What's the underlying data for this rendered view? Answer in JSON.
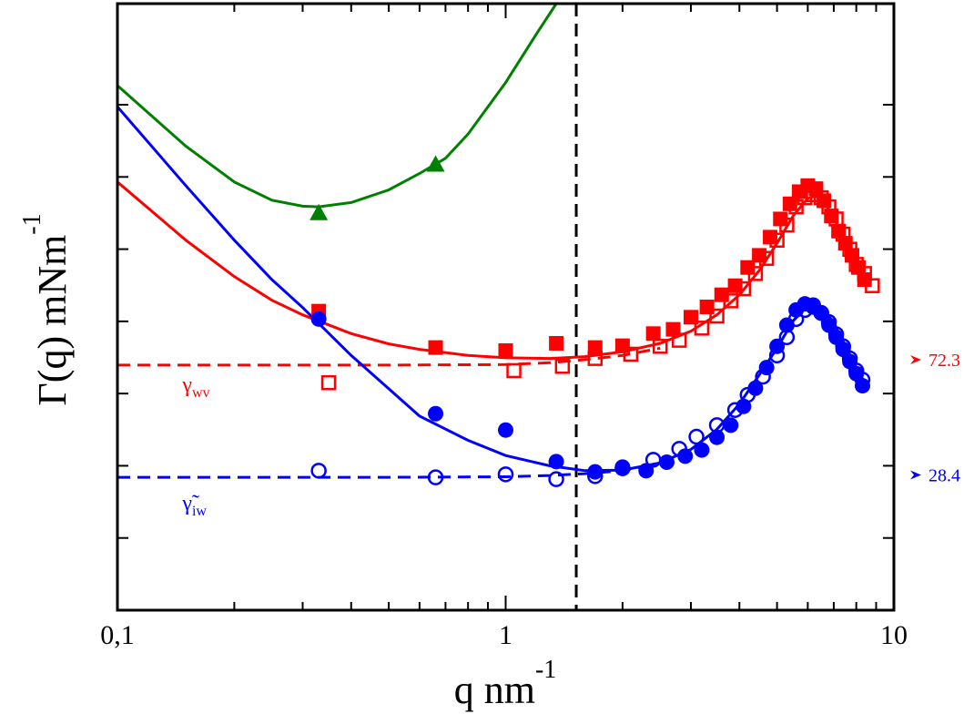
{
  "chart_data": {
    "type": "scatter",
    "title": "",
    "xscale": "log",
    "xlim": [
      0.1,
      10
    ],
    "ylim": [
      0,
      100
    ],
    "ylim_note": "y axis has no numeric tick labels; values are relative (0 = bottom, 100 = top of plot frame)",
    "x_tick_labels": [
      {
        "value": 0.1,
        "label": "0,1"
      },
      {
        "value": 1,
        "label": "1"
      },
      {
        "value": 10,
        "label": "10"
      }
    ],
    "xlabel": {
      "base": "q nm",
      "sup": "-1"
    },
    "ylabel": {
      "base": "Γ(q) mNm",
      "sup": "-1"
    },
    "vertical_reference_line": {
      "x": 1.52,
      "style": "dashed",
      "color": "#000000"
    },
    "series": [
      {
        "name": "green filled triangles",
        "marker": "triangle-filled",
        "color": "#008000",
        "points": [
          [
            0.33,
            65.5
          ],
          [
            0.66,
            73.5
          ]
        ]
      },
      {
        "name": "green fit",
        "kind": "line",
        "style": "solid",
        "color": "#008000",
        "points": [
          [
            0.1,
            86.5
          ],
          [
            0.15,
            76.5
          ],
          [
            0.2,
            70.6
          ],
          [
            0.25,
            67.6
          ],
          [
            0.3,
            66.6
          ],
          [
            0.33,
            66.5
          ],
          [
            0.4,
            67.2
          ],
          [
            0.5,
            69.3
          ],
          [
            0.6,
            72.0
          ],
          [
            0.7,
            74.5
          ],
          [
            0.8,
            78.5
          ],
          [
            1.0,
            87.0
          ],
          [
            1.2,
            95.0
          ],
          [
            1.35,
            100.0
          ]
        ]
      },
      {
        "name": "red filled squares",
        "marker": "square-filled",
        "color": "#ff0000",
        "points": [
          [
            0.33,
            49.3
          ],
          [
            0.66,
            43.3
          ],
          [
            1.0,
            42.8
          ],
          [
            1.35,
            44.0
          ],
          [
            1.7,
            43.3
          ],
          [
            2.0,
            43.6
          ],
          [
            2.4,
            45.6
          ],
          [
            2.7,
            46.3
          ],
          [
            3.0,
            48.3
          ],
          [
            3.3,
            50.0
          ],
          [
            3.6,
            52.0
          ],
          [
            3.9,
            53.5
          ],
          [
            4.2,
            56.5
          ],
          [
            4.5,
            58.5
          ],
          [
            4.8,
            61.5
          ],
          [
            5.1,
            64.5
          ],
          [
            5.4,
            67.0
          ],
          [
            5.7,
            69.0
          ],
          [
            6.0,
            70.0
          ],
          [
            6.3,
            69.5
          ],
          [
            6.6,
            67.5
          ],
          [
            6.9,
            65.0
          ],
          [
            7.2,
            62.5
          ],
          [
            7.5,
            60.5
          ],
          [
            7.8,
            58.5
          ],
          [
            8.1,
            56.5
          ],
          [
            8.4,
            54.5
          ]
        ]
      },
      {
        "name": "red open squares",
        "marker": "square-open",
        "color": "#ff0000",
        "points": [
          [
            0.35,
            37.5
          ],
          [
            1.05,
            39.5
          ],
          [
            1.4,
            40.2
          ],
          [
            1.7,
            41.5
          ],
          [
            2.1,
            42.2
          ],
          [
            2.5,
            43.5
          ],
          [
            2.8,
            44.5
          ],
          [
            3.2,
            46.5
          ],
          [
            3.5,
            48.5
          ],
          [
            3.8,
            51.0
          ],
          [
            4.1,
            53.0
          ],
          [
            4.4,
            55.5
          ],
          [
            4.7,
            58.0
          ],
          [
            5.0,
            61.0
          ],
          [
            5.3,
            63.5
          ],
          [
            5.6,
            66.5
          ],
          [
            5.9,
            68.0
          ],
          [
            6.2,
            68.5
          ],
          [
            6.5,
            68.0
          ],
          [
            6.8,
            66.5
          ],
          [
            7.1,
            64.5
          ],
          [
            7.4,
            62.0
          ],
          [
            7.7,
            59.5
          ],
          [
            8.0,
            57.0
          ],
          [
            8.4,
            55.5
          ],
          [
            8.8,
            53.5
          ]
        ]
      },
      {
        "name": "red fit",
        "kind": "line",
        "style": "solid",
        "color": "#ff0000",
        "points": [
          [
            0.1,
            70.6
          ],
          [
            0.15,
            61.0
          ],
          [
            0.2,
            55.0
          ],
          [
            0.25,
            51.1
          ],
          [
            0.3,
            48.7
          ],
          [
            0.4,
            45.6
          ],
          [
            0.5,
            43.9
          ],
          [
            0.6,
            43.0
          ],
          [
            0.8,
            42.0
          ],
          [
            1.0,
            41.6
          ],
          [
            1.3,
            41.5
          ],
          [
            1.6,
            41.8
          ],
          [
            2.0,
            42.6
          ],
          [
            2.5,
            44.0
          ],
          [
            3.0,
            46.0
          ],
          [
            3.5,
            48.7
          ],
          [
            4.0,
            52.0
          ],
          [
            4.5,
            56.0
          ],
          [
            5.0,
            60.5
          ],
          [
            5.5,
            65.0
          ],
          [
            6.0,
            67.9
          ],
          [
            6.3,
            68.3
          ],
          [
            6.6,
            67.3
          ],
          [
            7.0,
            64.8
          ],
          [
            7.5,
            60.5
          ],
          [
            8.0,
            56.5
          ],
          [
            8.5,
            53.5
          ]
        ]
      },
      {
        "name": "red dashed reference",
        "kind": "line",
        "style": "dashed",
        "color": "#ff0000",
        "points": [
          [
            0.1,
            40.4
          ],
          [
            0.5,
            40.4
          ],
          [
            1.0,
            40.5
          ],
          [
            1.3,
            40.8
          ],
          [
            1.6,
            41.3
          ],
          [
            2.0,
            42.0
          ],
          [
            2.5,
            43.2
          ]
        ]
      },
      {
        "name": "blue filled circles",
        "marker": "circle-filled",
        "color": "#0000ff",
        "points": [
          [
            0.33,
            48.0
          ],
          [
            0.66,
            32.4
          ],
          [
            1.0,
            29.7
          ],
          [
            1.35,
            24.5
          ],
          [
            1.7,
            22.8
          ],
          [
            2.0,
            23.6
          ],
          [
            2.3,
            23.0
          ],
          [
            2.6,
            24.4
          ],
          [
            2.9,
            25.4
          ],
          [
            3.2,
            26.4
          ],
          [
            3.5,
            28.5
          ],
          [
            3.8,
            30.5
          ],
          [
            4.1,
            33.6
          ],
          [
            4.4,
            36.6
          ],
          [
            4.7,
            40.0
          ],
          [
            5.0,
            43.5
          ],
          [
            5.3,
            47.0
          ],
          [
            5.6,
            49.5
          ],
          [
            5.9,
            50.5
          ],
          [
            6.2,
            50.3
          ],
          [
            6.5,
            49.0
          ],
          [
            6.8,
            47.0
          ],
          [
            7.1,
            45.0
          ],
          [
            7.4,
            43.0
          ],
          [
            7.7,
            41.0
          ],
          [
            8.0,
            39.0
          ],
          [
            8.3,
            37.0
          ]
        ]
      },
      {
        "name": "blue open circles",
        "marker": "circle-open",
        "color": "#0000ff",
        "points": [
          [
            0.33,
            23.0
          ],
          [
            0.66,
            21.9
          ],
          [
            1.0,
            22.4
          ],
          [
            1.35,
            21.6
          ],
          [
            1.7,
            22.1
          ],
          [
            2.0,
            23.4
          ],
          [
            2.4,
            24.8
          ],
          [
            2.8,
            26.6
          ],
          [
            3.1,
            28.6
          ],
          [
            3.5,
            30.5
          ],
          [
            3.9,
            33.0
          ],
          [
            4.2,
            35.5
          ],
          [
            4.6,
            38.5
          ],
          [
            5.0,
            42.0
          ],
          [
            5.3,
            45.0
          ],
          [
            5.6,
            48.0
          ],
          [
            5.9,
            49.5
          ],
          [
            6.2,
            50.0
          ],
          [
            6.5,
            49.0
          ],
          [
            6.8,
            47.5
          ],
          [
            7.1,
            45.5
          ],
          [
            7.4,
            43.5
          ],
          [
            7.7,
            41.5
          ],
          [
            8.0,
            39.5
          ],
          [
            8.3,
            38.0
          ]
        ]
      },
      {
        "name": "blue fit",
        "kind": "line",
        "style": "solid",
        "color": "#0000ff",
        "points": [
          [
            0.1,
            83.0
          ],
          [
            0.15,
            70.0
          ],
          [
            0.2,
            61.0
          ],
          [
            0.25,
            54.5
          ],
          [
            0.3,
            49.9
          ],
          [
            0.4,
            42.0
          ],
          [
            0.5,
            36.5
          ],
          [
            0.6,
            32.0
          ],
          [
            0.8,
            28.0
          ],
          [
            1.0,
            25.5
          ],
          [
            1.3,
            23.8
          ],
          [
            1.6,
            23.0
          ],
          [
            2.0,
            23.1
          ],
          [
            2.5,
            24.3
          ],
          [
            3.0,
            26.5
          ],
          [
            3.5,
            29.8
          ],
          [
            4.0,
            34.0
          ],
          [
            4.5,
            38.8
          ],
          [
            5.0,
            43.2
          ],
          [
            5.5,
            47.7
          ],
          [
            6.0,
            50.2
          ],
          [
            6.3,
            50.4
          ],
          [
            6.6,
            49.6
          ],
          [
            7.0,
            47.4
          ],
          [
            7.5,
            43.6
          ],
          [
            8.0,
            40.0
          ],
          [
            8.5,
            37.0
          ]
        ]
      },
      {
        "name": "blue dashed reference",
        "kind": "line",
        "style": "dashed",
        "color": "#0000ff",
        "points": [
          [
            0.1,
            21.9
          ],
          [
            0.5,
            21.9
          ],
          [
            1.0,
            22.0
          ],
          [
            1.3,
            22.2
          ],
          [
            1.6,
            22.5
          ],
          [
            2.0,
            23.0
          ],
          [
            2.4,
            24.0
          ]
        ]
      }
    ],
    "annotations": [
      {
        "name": "gamma-wv",
        "symbol": "γ",
        "subscript": "wv",
        "color": "#ff0000",
        "x": 0.125,
        "y": 36.0
      },
      {
        "name": "gamma-tilde-iw",
        "symbol": "γ̃",
        "subscript": "iw",
        "color": "#0000ff",
        "x": 0.125,
        "y": 16.5
      }
    ],
    "right_reference_markers": [
      {
        "label": "72.3",
        "color": "#ff0000",
        "y": 41.3
      },
      {
        "label": "28.4",
        "color": "#0000ff",
        "y": 22.3
      }
    ]
  }
}
